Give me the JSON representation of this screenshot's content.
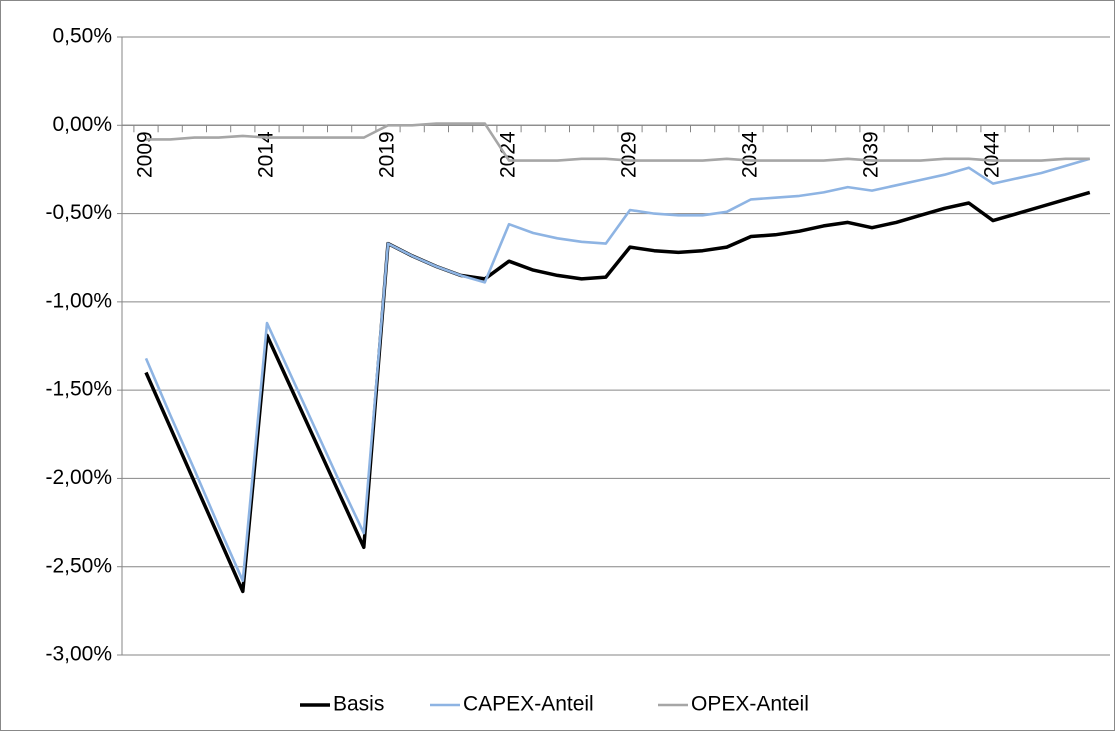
{
  "chart_data": {
    "type": "line",
    "categories": [
      "2009",
      null,
      null,
      null,
      null,
      "2014",
      null,
      null,
      null,
      null,
      "2019",
      null,
      null,
      null,
      null,
      "2024",
      null,
      null,
      null,
      null,
      "2029",
      null,
      null,
      null,
      null,
      "2034",
      null,
      null,
      null,
      null,
      "2039",
      null,
      null,
      null,
      null,
      "2044",
      null,
      null,
      null,
      null
    ],
    "series": [
      {
        "name": "Basis",
        "color": "#000000",
        "values": [
          -1.4,
          -1.71,
          -2.02,
          -2.33,
          -2.64,
          -1.19,
          -1.49,
          -1.79,
          -2.09,
          -2.39,
          -0.67,
          -0.74,
          -0.8,
          -0.85,
          -0.87,
          -0.77,
          -0.82,
          -0.85,
          -0.87,
          -0.86,
          -0.69,
          -0.71,
          -0.72,
          -0.71,
          -0.69,
          -0.63,
          -0.62,
          -0.6,
          -0.57,
          -0.55,
          -0.58,
          -0.55,
          -0.51,
          -0.47,
          -0.44,
          -0.54,
          -0.5,
          -0.46,
          -0.42,
          -0.38
        ]
      },
      {
        "name": "CAPEX-Anteil",
        "color": "#8eb4e3",
        "values": [
          -1.32,
          -1.64,
          -1.95,
          -2.27,
          -2.58,
          -1.12,
          -1.42,
          -1.72,
          -2.02,
          -2.31,
          -0.67,
          -0.74,
          -0.8,
          -0.85,
          -0.89,
          -0.56,
          -0.61,
          -0.64,
          -0.66,
          -0.67,
          -0.48,
          -0.5,
          -0.51,
          -0.51,
          -0.49,
          -0.42,
          -0.41,
          -0.4,
          -0.38,
          -0.35,
          -0.37,
          -0.34,
          -0.31,
          -0.28,
          -0.24,
          -0.33,
          -0.3,
          -0.27,
          -0.23,
          -0.19
        ]
      },
      {
        "name": "OPEX-Anteil",
        "color": "#a6a6a6",
        "values": [
          -0.08,
          -0.08,
          -0.07,
          -0.07,
          -0.06,
          -0.07,
          -0.07,
          -0.07,
          -0.07,
          -0.07,
          0.0,
          0.0,
          0.01,
          0.01,
          0.01,
          -0.2,
          -0.2,
          -0.2,
          -0.19,
          -0.19,
          -0.2,
          -0.2,
          -0.2,
          -0.2,
          -0.19,
          -0.2,
          -0.2,
          -0.2,
          -0.2,
          -0.19,
          -0.2,
          -0.2,
          -0.2,
          -0.19,
          -0.19,
          -0.2,
          -0.2,
          -0.2,
          -0.19,
          -0.19
        ]
      }
    ],
    "ylim": [
      -3.0,
      0.5
    ],
    "yticks": [
      {
        "value": 0.5,
        "label": "0,50%"
      },
      {
        "value": 0,
        "label": "0,00%"
      },
      {
        "value": -0.5,
        "label": "-0,50%"
      },
      {
        "value": -1.0,
        "label": "-1,00%"
      },
      {
        "value": -1.5,
        "label": "-1,50%"
      },
      {
        "value": -2.0,
        "label": "-2,00%"
      },
      {
        "value": -2.5,
        "label": "-2,50%"
      },
      {
        "value": -3.0,
        "label": "-3,00%"
      }
    ],
    "grid": true,
    "legend": "bottom"
  }
}
